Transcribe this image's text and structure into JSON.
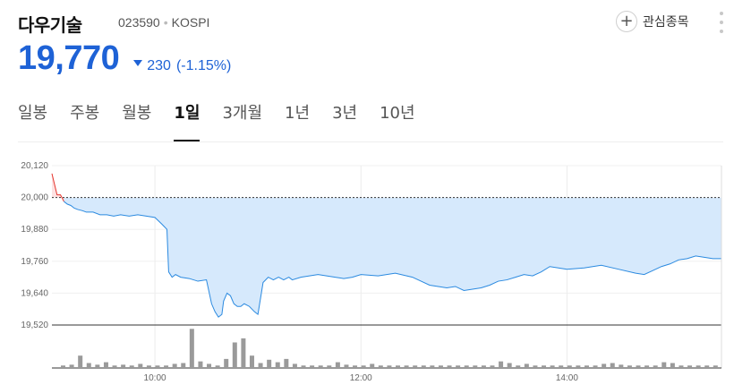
{
  "stock": {
    "name": "다우기술",
    "code": "023590",
    "separator": "•",
    "market": "KOSPI"
  },
  "actions": {
    "watchlist_label": "관심종목",
    "watchlist_icon": "plus-icon",
    "more_icon": "more-vertical-icon"
  },
  "quote": {
    "price": "19,770",
    "change": "230",
    "change_pct": "(-1.15%)",
    "direction_icon": "down-triangle-icon",
    "color_down": "#1e62d6",
    "color_up": "#e5352e"
  },
  "tabs": [
    {
      "label": "일봉",
      "active": false
    },
    {
      "label": "주봉",
      "active": false
    },
    {
      "label": "월봉",
      "active": false
    },
    {
      "label": "1일",
      "active": true
    },
    {
      "label": "3개월",
      "active": false
    },
    {
      "label": "1년",
      "active": false
    },
    {
      "label": "3년",
      "active": false
    },
    {
      "label": "10년",
      "active": false
    }
  ],
  "chart_data": {
    "type": "area",
    "title": "",
    "xlabel": "",
    "ylabel": "",
    "reference_price": 20000,
    "y_ticks": [
      "20,120",
      "20,000",
      "19,880",
      "19,760",
      "19,640",
      "19,520"
    ],
    "ylim": [
      19520,
      20120
    ],
    "x_tick_labels": [
      "10:00",
      "12:00",
      "14:00"
    ],
    "x_range": [
      "09:00",
      "15:30"
    ],
    "colors": {
      "area": "#d6e9fc",
      "line": "#2b8ae0",
      "above_line": "#e5352e",
      "above_area": "#fde2e2",
      "volume": "#9a9a9a"
    },
    "series": [
      {
        "x": [
          "09:00",
          "09:03",
          "09:05",
          "09:07",
          "09:09",
          "09:11",
          "09:13",
          "09:15",
          "09:18",
          "09:20",
          "09:24",
          "09:28",
          "09:32",
          "09:36",
          "09:40",
          "09:45",
          "09:50",
          "09:55",
          "10:00",
          "10:04",
          "10:07",
          "10:08",
          "10:10",
          "10:12",
          "10:15",
          "10:20",
          "10:25",
          "10:30",
          "10:33",
          "10:35",
          "10:37",
          "10:39",
          "10:40",
          "10:42",
          "10:44",
          "10:46",
          "10:48",
          "10:50",
          "10:52",
          "10:55",
          "10:58",
          "11:00",
          "11:03",
          "11:06",
          "11:09",
          "11:12",
          "11:15",
          "11:18",
          "11:20",
          "11:25",
          "11:30",
          "11:35",
          "11:40",
          "11:45",
          "11:50",
          "11:55",
          "12:00",
          "12:10",
          "12:20",
          "12:30",
          "12:40",
          "12:45",
          "12:50",
          "12:55",
          "13:00",
          "13:05",
          "13:10",
          "13:15",
          "13:20",
          "13:25",
          "13:30",
          "13:35",
          "13:40",
          "13:45",
          "13:50",
          "13:55",
          "14:00",
          "14:10",
          "14:20",
          "14:30",
          "14:40",
          "14:45",
          "14:50",
          "14:55",
          "15:00",
          "15:05",
          "15:10",
          "15:15",
          "15:20",
          "15:25",
          "15:30"
        ],
        "y": [
          20090,
          20010,
          20010,
          19985,
          19975,
          19970,
          19960,
          19955,
          19950,
          19945,
          19945,
          19935,
          19935,
          19930,
          19935,
          19930,
          19935,
          19930,
          19925,
          19900,
          19880,
          19720,
          19700,
          19710,
          19700,
          19695,
          19685,
          19690,
          19600,
          19570,
          19550,
          19560,
          19610,
          19640,
          19630,
          19600,
          19590,
          19590,
          19600,
          19590,
          19570,
          19560,
          19680,
          19700,
          19690,
          19700,
          19690,
          19700,
          19690,
          19700,
          19705,
          19710,
          19705,
          19700,
          19695,
          19700,
          19710,
          19705,
          19715,
          19700,
          19670,
          19665,
          19660,
          19665,
          19650,
          19655,
          19660,
          19670,
          19685,
          19690,
          19700,
          19710,
          19705,
          19720,
          19740,
          19735,
          19730,
          19735,
          19745,
          19730,
          19715,
          19710,
          19725,
          19740,
          19750,
          19765,
          19770,
          19780,
          19775,
          19770,
          19770
        ]
      }
    ],
    "volume": {
      "x": [
        "09:00",
        "09:05",
        "09:10",
        "09:15",
        "09:20",
        "09:25",
        "09:30",
        "09:35",
        "09:40",
        "09:45",
        "09:50",
        "09:55",
        "10:00",
        "10:05",
        "10:10",
        "10:15",
        "10:20",
        "10:25",
        "10:30",
        "10:35",
        "10:40",
        "10:45",
        "10:50",
        "10:55",
        "11:00",
        "11:05",
        "11:10",
        "11:15",
        "11:20",
        "11:25",
        "11:30",
        "11:35",
        "11:40",
        "11:45",
        "11:50",
        "11:55",
        "12:00",
        "12:05",
        "12:10",
        "12:15",
        "12:20",
        "12:25",
        "12:30",
        "12:35",
        "12:40",
        "12:45",
        "12:50",
        "12:55",
        "13:00",
        "13:05",
        "13:10",
        "13:15",
        "13:20",
        "13:25",
        "13:30",
        "13:35",
        "13:40",
        "13:45",
        "13:50",
        "13:55",
        "14:00",
        "14:05",
        "14:10",
        "14:15",
        "14:20",
        "14:25",
        "14:30",
        "14:35",
        "14:40",
        "14:45",
        "14:50",
        "14:55",
        "15:00",
        "15:05",
        "15:10",
        "15:15",
        "15:20"
      ],
      "values": [
        0.06,
        0.08,
        0.3,
        0.12,
        0.08,
        0.14,
        0.06,
        0.08,
        0.06,
        0.1,
        0.06,
        0.06,
        0.06,
        0.1,
        0.12,
        0.95,
        0.16,
        0.1,
        0.06,
        0.22,
        0.62,
        0.72,
        0.3,
        0.12,
        0.2,
        0.14,
        0.22,
        0.1,
        0.06,
        0.06,
        0.06,
        0.06,
        0.14,
        0.08,
        0.06,
        0.06,
        0.1,
        0.06,
        0.06,
        0.06,
        0.06,
        0.06,
        0.06,
        0.06,
        0.06,
        0.06,
        0.06,
        0.06,
        0.06,
        0.06,
        0.06,
        0.16,
        0.12,
        0.06,
        0.1,
        0.06,
        0.06,
        0.06,
        0.06,
        0.06,
        0.06,
        0.06,
        0.06,
        0.1,
        0.12,
        0.08,
        0.06,
        0.06,
        0.06,
        0.06,
        0.14,
        0.12,
        0.06,
        0.06,
        0.06,
        0.06,
        0.06
      ]
    }
  }
}
